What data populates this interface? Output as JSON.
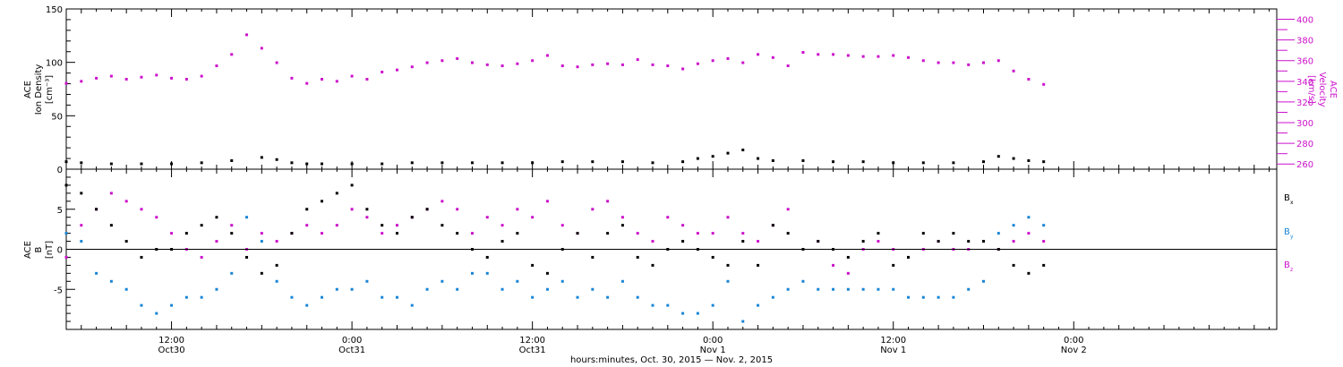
{
  "colors": {
    "black": "#000000",
    "magenta": "#cc11cc",
    "blue": "#1a86d6"
  },
  "time_axis": {
    "title": "hours:minutes, Oct. 30, 2015 — Nov. 2, 2015",
    "range_hours": [
      5,
      85.5
    ],
    "major_ticks": [
      {
        "hour": 12,
        "time": "12:00",
        "day": "Oct30"
      },
      {
        "hour": 24,
        "time": "0:00",
        "day": "Oct31"
      },
      {
        "hour": 36,
        "time": "12:00",
        "day": "Oct31"
      },
      {
        "hour": 48,
        "time": "0:00",
        "day": "Nov 1"
      },
      {
        "hour": 60,
        "time": "12:00",
        "day": "Nov 1"
      },
      {
        "hour": 72,
        "time": "0:00",
        "day": "Nov 2"
      }
    ]
  },
  "chart_data": [
    {
      "type": "scatter",
      "ylabel_left": [
        "ACE",
        "Ion Density",
        "[cm⁻³]"
      ],
      "ylabel_right": [
        "ACE",
        "Velocity",
        "[km/s]"
      ],
      "ylim": [
        0,
        150
      ],
      "yticks": [
        0,
        50,
        100,
        150
      ],
      "ylim_right": [
        255,
        410
      ],
      "yticks_right": [
        260,
        280,
        300,
        320,
        340,
        360,
        380,
        400
      ],
      "series": [
        {
          "name": "",
          "axis": "left",
          "color": "black",
          "x": [
            5,
            6,
            8,
            10,
            12,
            14,
            16,
            18,
            19,
            20,
            21,
            22,
            24,
            26,
            28,
            30,
            32,
            34,
            36,
            38,
            40,
            42,
            44,
            46,
            47,
            48,
            49,
            50,
            51,
            52,
            54,
            56,
            58,
            60,
            62,
            64,
            66,
            67,
            68,
            69,
            70
          ],
          "y": [
            7,
            6,
            5,
            5,
            5,
            6,
            8,
            11,
            9,
            6,
            5,
            5,
            5,
            5,
            6,
            6,
            6,
            6,
            6,
            7,
            7,
            7,
            6,
            7,
            10,
            12,
            15,
            18,
            10,
            8,
            8,
            7,
            7,
            6,
            6,
            6,
            7,
            12,
            10,
            8,
            7
          ]
        },
        {
          "name": "",
          "axis": "right",
          "color": "magenta",
          "x": [
            5,
            6,
            7,
            8,
            9,
            10,
            11,
            12,
            13,
            14,
            15,
            16,
            17,
            18,
            19,
            20,
            21,
            22,
            23,
            24,
            25,
            26,
            27,
            28,
            29,
            30,
            31,
            32,
            33,
            34,
            35,
            36,
            37,
            38,
            39,
            40,
            41,
            42,
            43,
            44,
            45,
            46,
            47,
            48,
            49,
            50,
            51,
            52,
            53,
            54,
            55,
            56,
            57,
            58,
            59,
            60,
            61,
            62,
            63,
            64,
            65,
            66,
            67,
            68,
            69,
            70
          ],
          "y": [
            338,
            340,
            343,
            345,
            342,
            344,
            346,
            343,
            342,
            345,
            355,
            366,
            385,
            372,
            358,
            343,
            338,
            342,
            340,
            345,
            342,
            349,
            351,
            354,
            358,
            360,
            362,
            358,
            356,
            355,
            357,
            360,
            365,
            355,
            354,
            356,
            357,
            356,
            361,
            356,
            355,
            352,
            357,
            360,
            362,
            358,
            366,
            363,
            355,
            368,
            366,
            366,
            365,
            364,
            364,
            365,
            363,
            360,
            358,
            358,
            356,
            358,
            360,
            350,
            342,
            337
          ]
        }
      ]
    },
    {
      "type": "scatter",
      "ylabel": [
        "ACE",
        "B",
        "[nT]"
      ],
      "ylim": [
        -10,
        10
      ],
      "yticks": [
        -5,
        0,
        5
      ],
      "series": [
        {
          "name": "Bx",
          "label_main": "B",
          "label_sub": "x",
          "color": "black",
          "x": [
            5,
            6,
            7,
            8,
            9,
            10,
            11,
            12,
            13,
            14,
            15,
            16,
            17,
            18,
            19,
            20,
            21,
            22,
            23,
            24,
            25,
            26,
            27,
            28,
            29,
            30,
            31,
            32,
            33,
            34,
            35,
            36,
            37,
            38,
            39,
            40,
            41,
            42,
            43,
            44,
            45,
            46,
            47,
            48,
            49,
            50,
            51,
            52,
            53,
            54,
            55,
            56,
            57,
            58,
            59,
            60,
            61,
            62,
            63,
            64,
            65,
            66,
            67,
            68,
            69,
            70
          ],
          "y": [
            8,
            7,
            5,
            3,
            1,
            -1,
            0,
            0,
            2,
            3,
            4,
            2,
            -1,
            -3,
            -2,
            2,
            5,
            6,
            7,
            8,
            5,
            3,
            2,
            4,
            5,
            3,
            2,
            0,
            -1,
            1,
            2,
            -2,
            -3,
            0,
            2,
            -1,
            2,
            3,
            -1,
            -2,
            0,
            1,
            0,
            -1,
            -2,
            1,
            -2,
            3,
            2,
            0,
            1,
            0,
            -1,
            1,
            2,
            -2,
            -1,
            2,
            1,
            2,
            1,
            1,
            0,
            -2,
            -3,
            -2
          ]
        },
        {
          "name": "By",
          "label_main": "B",
          "label_sub": "y",
          "color": "blue",
          "x": [
            5,
            6,
            7,
            8,
            9,
            10,
            11,
            12,
            13,
            14,
            15,
            16,
            17,
            18,
            19,
            20,
            21,
            22,
            23,
            24,
            25,
            26,
            27,
            28,
            29,
            30,
            31,
            32,
            33,
            34,
            35,
            36,
            37,
            38,
            39,
            40,
            41,
            42,
            43,
            44,
            45,
            46,
            47,
            48,
            49,
            50,
            51,
            52,
            53,
            54,
            55,
            56,
            57,
            58,
            59,
            60,
            61,
            62,
            63,
            64,
            65,
            66,
            67,
            68,
            69,
            70
          ],
          "y": [
            2,
            1,
            -3,
            -4,
            -5,
            -7,
            -8,
            -7,
            -6,
            -6,
            -5,
            -3,
            4,
            1,
            -4,
            -6,
            -7,
            -6,
            -5,
            -5,
            -4,
            -6,
            -6,
            -7,
            -5,
            -4,
            -5,
            -3,
            -3,
            -5,
            -4,
            -6,
            -5,
            -4,
            -6,
            -5,
            -6,
            -4,
            -6,
            -7,
            -7,
            -8,
            -8,
            -7,
            -4,
            -9,
            -7,
            -6,
            -5,
            -4,
            -5,
            -5,
            -5,
            -5,
            -5,
            -5,
            -6,
            -6,
            -6,
            -6,
            -5,
            -4,
            2,
            3,
            4,
            3
          ]
        },
        {
          "name": "Bz",
          "label_main": "B",
          "label_sub": "z",
          "color": "magenta",
          "x": [
            5,
            6,
            7,
            8,
            9,
            10,
            11,
            12,
            13,
            14,
            15,
            16,
            17,
            18,
            19,
            20,
            21,
            22,
            23,
            24,
            25,
            26,
            27,
            28,
            29,
            30,
            31,
            32,
            33,
            34,
            35,
            36,
            37,
            38,
            39,
            40,
            41,
            42,
            43,
            44,
            45,
            46,
            47,
            48,
            49,
            50,
            51,
            52,
            53,
            54,
            55,
            56,
            57,
            58,
            59,
            60,
            61,
            62,
            63,
            64,
            65,
            66,
            67,
            68,
            69,
            70
          ],
          "y": [
            -1,
            3,
            5,
            7,
            6,
            5,
            4,
            2,
            0,
            -1,
            1,
            3,
            0,
            2,
            1,
            2,
            3,
            2,
            3,
            5,
            4,
            2,
            3,
            4,
            5,
            6,
            5,
            2,
            4,
            3,
            5,
            4,
            6,
            3,
            2,
            5,
            6,
            4,
            2,
            1,
            4,
            3,
            2,
            2,
            4,
            2,
            1,
            3,
            5,
            0,
            1,
            -2,
            -3,
            0,
            1,
            0,
            -1,
            0,
            1,
            0,
            0,
            1,
            0,
            1,
            2,
            1
          ]
        }
      ]
    }
  ]
}
